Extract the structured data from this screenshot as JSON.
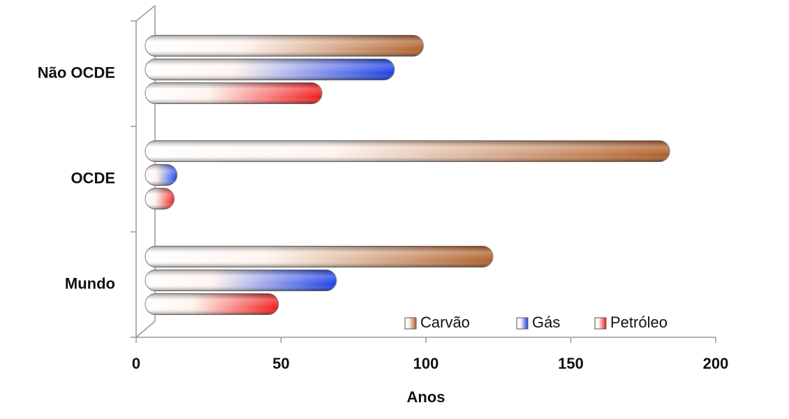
{
  "chart_data": {
    "type": "barh",
    "x_label": "Anos",
    "categories": [
      "Mundo",
      "OCDE",
      "Não OCDE"
    ],
    "series": [
      {
        "name": "Carvão",
        "color": "#b0602a",
        "values": [
          120,
          181,
          96
        ]
      },
      {
        "name": "Gás",
        "color": "#1a3fe8",
        "values": [
          66,
          11,
          86
        ]
      },
      {
        "name": "Petróleo",
        "color": "#f01818",
        "values": [
          46,
          10,
          61
        ]
      }
    ],
    "xlim": [
      0,
      200
    ],
    "xticks": [
      0,
      50,
      100,
      150,
      200
    ],
    "legend": "lower right"
  }
}
